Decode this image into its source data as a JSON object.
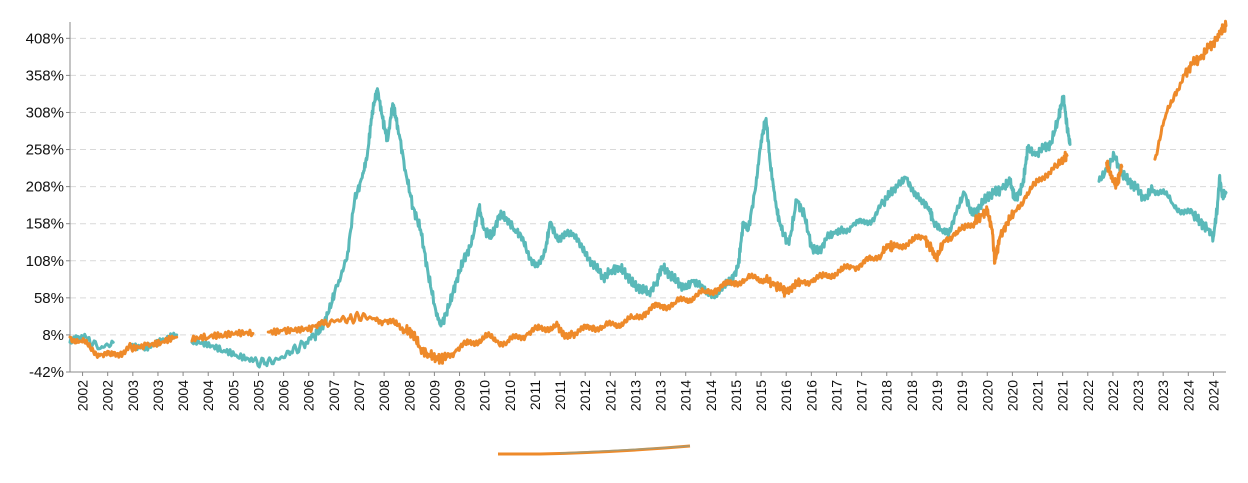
{
  "chart_data": {
    "type": "line",
    "title": "",
    "xlabel": "",
    "ylabel": "",
    "x_tick_labels": [
      "2002",
      "2002",
      "2003",
      "2003",
      "2004",
      "2004",
      "2005",
      "2005",
      "2006",
      "2006",
      "2007",
      "2007",
      "2008",
      "2008",
      "2009",
      "2009",
      "2010",
      "2010",
      "2011",
      "2011",
      "2012",
      "2012",
      "2013",
      "2013",
      "2014",
      "2014",
      "2015",
      "2015",
      "2016",
      "2016",
      "2017",
      "2017",
      "2018",
      "2018",
      "2019",
      "2019",
      "2020",
      "2020",
      "2021",
      "2021",
      "2022",
      "2022",
      "2023",
      "2023",
      "2024",
      "2024"
    ],
    "y_tick_labels": [
      "-42%",
      "8%",
      "58%",
      "108%",
      "158%",
      "208%",
      "258%",
      "308%",
      "358%",
      "408%"
    ],
    "y_ticks": [
      -42,
      8,
      58,
      108,
      158,
      208,
      258,
      308,
      358,
      408
    ],
    "xlim": [
      2002.0,
      2024.75
    ],
    "ylim": [
      -42,
      430
    ],
    "grid": true,
    "series": [
      {
        "color": "#5ab9b9",
        "points": [
          [
            2002.0,
            -2
          ],
          [
            2002.15,
            6
          ],
          [
            2002.35,
            2
          ],
          [
            2002.6,
            -10
          ],
          [
            2002.85,
            -2
          ],
          [
            2003.2,
            -5
          ],
          [
            2003.5,
            -8
          ],
          [
            2003.8,
            0
          ],
          [
            2004.1,
            8
          ],
          [
            2004.4,
            -2
          ],
          [
            2004.7,
            -8
          ],
          [
            2005.0,
            -15
          ],
          [
            2005.3,
            -22
          ],
          [
            2005.6,
            -28
          ],
          [
            2005.85,
            -30
          ],
          [
            2006.1,
            -25
          ],
          [
            2006.35,
            -15
          ],
          [
            2006.6,
            -5
          ],
          [
            2006.8,
            5
          ],
          [
            2006.95,
            18
          ],
          [
            2007.1,
            40
          ],
          [
            2007.25,
            75
          ],
          [
            2007.45,
            110
          ],
          [
            2007.6,
            190
          ],
          [
            2007.75,
            220
          ],
          [
            2007.85,
            250
          ],
          [
            2007.95,
            310
          ],
          [
            2008.05,
            340
          ],
          [
            2008.15,
            300
          ],
          [
            2008.25,
            270
          ],
          [
            2008.35,
            320
          ],
          [
            2008.45,
            290
          ],
          [
            2008.6,
            230
          ],
          [
            2008.75,
            180
          ],
          [
            2008.9,
            150
          ],
          [
            2009.05,
            90
          ],
          [
            2009.2,
            40
          ],
          [
            2009.3,
            20
          ],
          [
            2009.45,
            45
          ],
          [
            2009.6,
            80
          ],
          [
            2009.75,
            110
          ],
          [
            2009.9,
            130
          ],
          [
            2010.05,
            180
          ],
          [
            2010.15,
            150
          ],
          [
            2010.3,
            140
          ],
          [
            2010.45,
            170
          ],
          [
            2010.6,
            165
          ],
          [
            2010.75,
            150
          ],
          [
            2010.9,
            140
          ],
          [
            2011.05,
            110
          ],
          [
            2011.2,
            100
          ],
          [
            2011.35,
            120
          ],
          [
            2011.45,
            160
          ],
          [
            2011.6,
            135
          ],
          [
            2011.75,
            145
          ],
          [
            2011.9,
            145
          ],
          [
            2012.05,
            130
          ],
          [
            2012.2,
            110
          ],
          [
            2012.35,
            100
          ],
          [
            2012.5,
            85
          ],
          [
            2012.65,
            95
          ],
          [
            2012.8,
            100
          ],
          [
            2012.95,
            90
          ],
          [
            2013.1,
            75
          ],
          [
            2013.25,
            70
          ],
          [
            2013.4,
            65
          ],
          [
            2013.55,
            80
          ],
          [
            2013.65,
            100
          ],
          [
            2013.8,
            90
          ],
          [
            2013.95,
            80
          ],
          [
            2014.1,
            70
          ],
          [
            2014.25,
            80
          ],
          [
            2014.4,
            75
          ],
          [
            2014.55,
            65
          ],
          [
            2014.7,
            60
          ],
          [
            2014.85,
            75
          ],
          [
            2015.0,
            80
          ],
          [
            2015.15,
            100
          ],
          [
            2015.25,
            160
          ],
          [
            2015.35,
            150
          ],
          [
            2015.5,
            210
          ],
          [
            2015.6,
            270
          ],
          [
            2015.7,
            300
          ],
          [
            2015.78,
            240
          ],
          [
            2015.9,
            180
          ],
          [
            2016.0,
            150
          ],
          [
            2016.15,
            130
          ],
          [
            2016.3,
            190
          ],
          [
            2016.45,
            170
          ],
          [
            2016.6,
            125
          ],
          [
            2016.75,
            120
          ],
          [
            2016.9,
            140
          ],
          [
            2017.05,
            145
          ],
          [
            2017.2,
            150
          ],
          [
            2017.4,
            155
          ],
          [
            2017.6,
            160
          ],
          [
            2017.8,
            165
          ],
          [
            2018.0,
            185
          ],
          [
            2018.15,
            200
          ],
          [
            2018.3,
            210
          ],
          [
            2018.45,
            220
          ],
          [
            2018.6,
            200
          ],
          [
            2018.75,
            190
          ],
          [
            2018.9,
            180
          ],
          [
            2019.0,
            160
          ],
          [
            2019.15,
            150
          ],
          [
            2019.3,
            145
          ],
          [
            2019.45,
            175
          ],
          [
            2019.6,
            200
          ],
          [
            2019.75,
            170
          ],
          [
            2019.9,
            180
          ],
          [
            2020.05,
            195
          ],
          [
            2020.2,
            200
          ],
          [
            2020.35,
            205
          ],
          [
            2020.5,
            215
          ],
          [
            2020.6,
            190
          ],
          [
            2020.75,
            210
          ],
          [
            2020.85,
            260
          ],
          [
            2021.0,
            250
          ],
          [
            2021.15,
            260
          ],
          [
            2021.3,
            265
          ],
          [
            2021.45,
            300
          ],
          [
            2021.55,
            330
          ],
          [
            2021.62,
            290
          ],
          [
            2021.68,
            265
          ],
          [
            2022.25,
            215
          ],
          [
            2022.4,
            230
          ],
          [
            2022.55,
            250
          ],
          [
            2022.7,
            225
          ],
          [
            2022.85,
            215
          ],
          [
            2023.0,
            205
          ],
          [
            2023.15,
            190
          ],
          [
            2023.3,
            205
          ],
          [
            2023.5,
            200
          ],
          [
            2023.7,
            185
          ],
          [
            2023.9,
            175
          ],
          [
            2024.1,
            170
          ],
          [
            2024.25,
            160
          ],
          [
            2024.4,
            150
          ],
          [
            2024.5,
            140
          ],
          [
            2024.58,
            180
          ],
          [
            2024.62,
            220
          ],
          [
            2024.68,
            195
          ],
          [
            2024.75,
            200
          ]
        ]
      },
      {
        "color": "#ee8a2a",
        "points": [
          [
            2002.0,
            5
          ],
          [
            2002.2,
            0
          ],
          [
            2002.4,
            -10
          ],
          [
            2002.6,
            -18
          ],
          [
            2002.8,
            -20
          ],
          [
            2003.0,
            -15
          ],
          [
            2003.2,
            -8
          ],
          [
            2003.5,
            -5
          ],
          [
            2003.8,
            -2
          ],
          [
            2004.1,
            5
          ],
          [
            2004.4,
            0
          ],
          [
            2004.7,
            3
          ],
          [
            2005.0,
            5
          ],
          [
            2005.3,
            8
          ],
          [
            2005.6,
            10
          ],
          [
            2005.9,
            12
          ],
          [
            2006.2,
            15
          ],
          [
            2006.5,
            18
          ],
          [
            2006.8,
            20
          ],
          [
            2007.0,
            22
          ],
          [
            2007.25,
            28
          ],
          [
            2007.5,
            30
          ],
          [
            2007.75,
            33
          ],
          [
            2008.0,
            30
          ],
          [
            2008.2,
            28
          ],
          [
            2008.4,
            22
          ],
          [
            2008.6,
            15
          ],
          [
            2008.75,
            10
          ],
          [
            2008.9,
            -10
          ],
          [
            2009.05,
            -18
          ],
          [
            2009.2,
            -22
          ],
          [
            2009.3,
            -25
          ],
          [
            2009.4,
            -20
          ],
          [
            2009.6,
            -12
          ],
          [
            2009.8,
            -5
          ],
          [
            2010.0,
            0
          ],
          [
            2010.2,
            5
          ],
          [
            2010.4,
            0
          ],
          [
            2010.6,
            -2
          ],
          [
            2010.8,
            5
          ],
          [
            2011.0,
            10
          ],
          [
            2011.2,
            15
          ],
          [
            2011.4,
            18
          ],
          [
            2011.6,
            20
          ],
          [
            2011.75,
            5
          ],
          [
            2011.9,
            10
          ],
          [
            2012.1,
            15
          ],
          [
            2012.3,
            20
          ],
          [
            2012.5,
            18
          ],
          [
            2012.7,
            22
          ],
          [
            2012.9,
            25
          ],
          [
            2013.1,
            30
          ],
          [
            2013.3,
            38
          ],
          [
            2013.5,
            45
          ],
          [
            2013.7,
            48
          ],
          [
            2013.9,
            50
          ],
          [
            2014.1,
            55
          ],
          [
            2014.3,
            60
          ],
          [
            2014.5,
            65
          ],
          [
            2014.7,
            70
          ],
          [
            2014.9,
            75
          ],
          [
            2015.1,
            80
          ],
          [
            2015.3,
            82
          ],
          [
            2015.5,
            85
          ],
          [
            2015.7,
            83
          ],
          [
            2015.85,
            75
          ],
          [
            2016.0,
            70
          ],
          [
            2016.1,
            65
          ],
          [
            2016.25,
            75
          ],
          [
            2016.4,
            80
          ],
          [
            2016.6,
            82
          ],
          [
            2016.8,
            85
          ],
          [
            2017.0,
            90
          ],
          [
            2017.2,
            95
          ],
          [
            2017.4,
            100
          ],
          [
            2017.6,
            105
          ],
          [
            2017.8,
            110
          ],
          [
            2018.0,
            120
          ],
          [
            2018.1,
            130
          ],
          [
            2018.2,
            125
          ],
          [
            2018.4,
            130
          ],
          [
            2018.6,
            135
          ],
          [
            2018.8,
            140
          ],
          [
            2018.95,
            125
          ],
          [
            2019.05,
            110
          ],
          [
            2019.2,
            135
          ],
          [
            2019.4,
            145
          ],
          [
            2019.6,
            150
          ],
          [
            2019.8,
            160
          ],
          [
            2019.95,
            170
          ],
          [
            2020.05,
            175
          ],
          [
            2020.15,
            150
          ],
          [
            2020.2,
            105
          ],
          [
            2020.3,
            140
          ],
          [
            2020.45,
            160
          ],
          [
            2020.6,
            175
          ],
          [
            2020.8,
            195
          ],
          [
            2021.0,
            210
          ],
          [
            2021.2,
            225
          ],
          [
            2021.4,
            235
          ],
          [
            2021.55,
            245
          ],
          [
            2021.62,
            250
          ],
          [
            2022.4,
            240
          ],
          [
            2022.5,
            220
          ],
          [
            2022.6,
            210
          ],
          [
            2022.7,
            235
          ],
          [
            2023.35,
            245
          ],
          [
            2023.55,
            300
          ],
          [
            2023.75,
            335
          ],
          [
            2023.95,
            360
          ],
          [
            2024.1,
            375
          ],
          [
            2024.25,
            380
          ],
          [
            2024.4,
            395
          ],
          [
            2024.55,
            405
          ],
          [
            2024.65,
            418
          ],
          [
            2024.75,
            425
          ]
        ]
      }
    ]
  }
}
